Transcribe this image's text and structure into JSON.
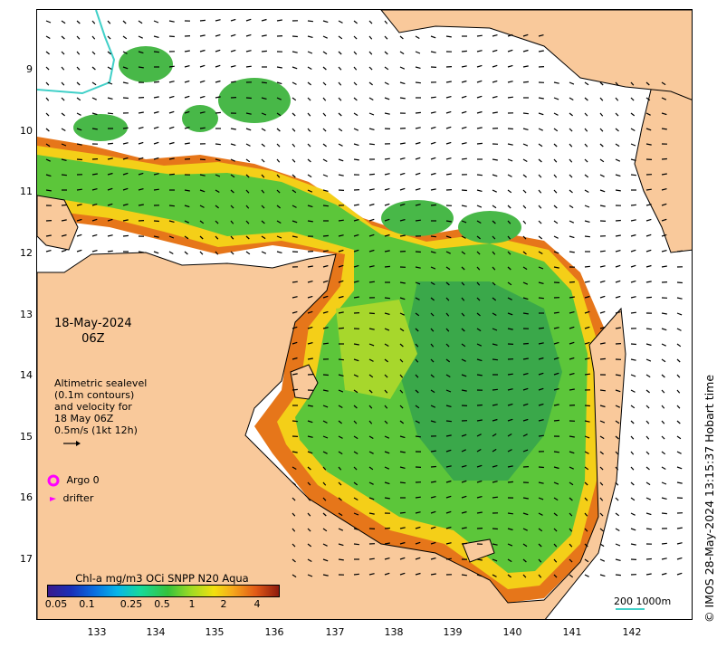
{
  "map": {
    "date": "18-May-2024",
    "hour": "06Z",
    "y_ticks": [
      "9",
      "10",
      "11",
      "12",
      "13",
      "14",
      "15",
      "16",
      "17"
    ],
    "x_ticks": [
      "133",
      "134",
      "135",
      "136",
      "137",
      "138",
      "139",
      "140",
      "141",
      "142"
    ],
    "legend": {
      "line1": "Altimetric sealevel",
      "line2": "(0.1m contours)",
      "line3": "and velocity for",
      "line4": "18 May 06Z",
      "line5": "0.5m/s (1kt 12h)",
      "argo": "Argo 0",
      "drifter": "drifter"
    },
    "colorbar": {
      "title": "Chl-a mg/m3 OCi SNPP N20 Aqua",
      "ticks": [
        "0.05",
        "0.1",
        "0.25",
        "0.5",
        "1",
        "2",
        "4"
      ]
    },
    "scale": "200  1000m",
    "credit": "© IMOS 28-May-2024 13:15:37 Hobart time"
  },
  "colors": {
    "land": "#f9c99b",
    "ocean_no_data": "#ffffff",
    "argo_marker": "#ff00ff",
    "drifter_marker": "#ff00ff",
    "contour_line": "#40d0c8",
    "scale_bar": "#40d0c8"
  },
  "icons": {
    "argo": "magenta-circle-icon",
    "drifter": "magenta-arrow-icon",
    "velocity": "black-arrow-icon"
  }
}
